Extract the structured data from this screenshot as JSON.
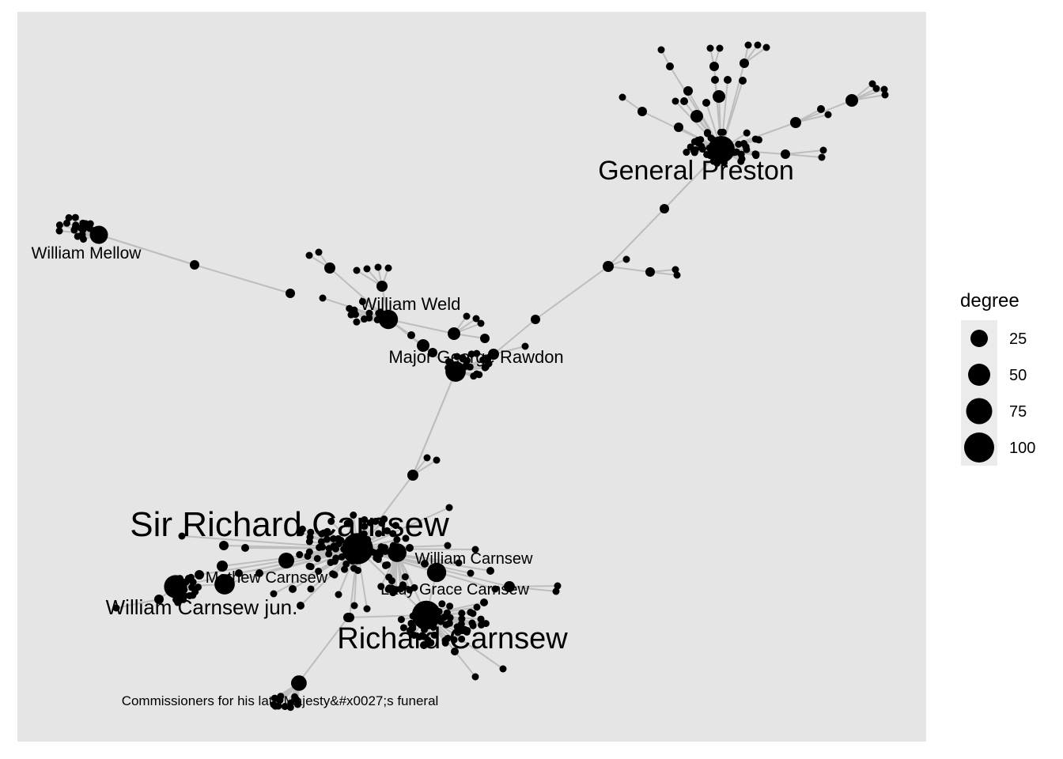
{
  "colors": {
    "panel": "#e5e5e5",
    "edge": "#bdbdbd",
    "node": "#000000",
    "legend_key_bg": "#ebebeb"
  },
  "legend": {
    "title": "degree",
    "entries": [
      {
        "label": "25",
        "degree": 25
      },
      {
        "label": "50",
        "degree": 50
      },
      {
        "label": "75",
        "degree": 75
      },
      {
        "label": "100",
        "degree": 100
      }
    ]
  },
  "hubs": [
    {
      "label": "General Preston",
      "degree": 75
    },
    {
      "label": "William Mellow",
      "degree": 25
    },
    {
      "label": "William Weld",
      "degree": 30
    },
    {
      "label": "Major George Rawdon",
      "degree": 35
    },
    {
      "label": "Sir Richard Carnsew",
      "degree": 110
    },
    {
      "label": "William Carnsew",
      "degree": 30
    },
    {
      "label": "Mathew Carnsew",
      "degree": 35
    },
    {
      "label": "Lady Grace Carnsew",
      "degree": 28
    },
    {
      "label": "William Carnsew jun.",
      "degree": 50
    },
    {
      "label": "Richard Carnsew",
      "degree": 90
    },
    {
      "label": "Commissioners for his late Majesty&#x0027;s funeral",
      "degree": 15
    }
  ]
}
